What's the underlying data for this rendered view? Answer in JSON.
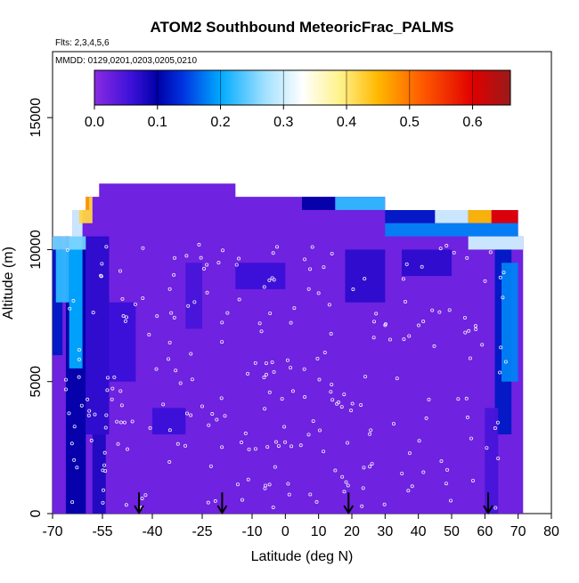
{
  "chart_data": {
    "type": "heatmap",
    "title": "ATOM2 Southbound MeteoricFrac_PALMS",
    "flights_note": "Flts: 2,3,4,5,6",
    "dates_note": "MMDD: 0129,0201,0203,0205,0210",
    "xlabel": "Latitude (deg N)",
    "ylabel": "Altitude (m)",
    "xlim": [
      -70,
      80
    ],
    "ylim": [
      0,
      17500
    ],
    "x_ticks": [
      -70,
      -55,
      -40,
      -25,
      -10,
      0,
      10,
      20,
      30,
      40,
      50,
      60,
      70,
      80
    ],
    "y_ticks": [
      0,
      5000,
      10000,
      15000
    ],
    "colorbar": {
      "ticks": [
        0.0,
        0.1,
        0.2,
        0.3,
        0.4,
        0.5,
        0.6
      ],
      "tick_labels": [
        "0.0",
        "0.1",
        "0.2",
        "0.3",
        "0.4",
        "0.5",
        "0.6"
      ],
      "range": [
        0.0,
        0.66
      ],
      "stops": [
        {
          "value": 0.0,
          "color": "#8a2be2"
        },
        {
          "value": 0.06,
          "color": "#3a10d8"
        },
        {
          "value": 0.1,
          "color": "#0000a8"
        },
        {
          "value": 0.14,
          "color": "#0033e0"
        },
        {
          "value": 0.2,
          "color": "#00aaff"
        },
        {
          "value": 0.27,
          "color": "#a0e0ff"
        },
        {
          "value": 0.33,
          "color": "#ffffff"
        },
        {
          "value": 0.39,
          "color": "#fff28a"
        },
        {
          "value": 0.45,
          "color": "#ffb800"
        },
        {
          "value": 0.52,
          "color": "#ff5a00"
        },
        {
          "value": 0.6,
          "color": "#e00000"
        },
        {
          "value": 0.66,
          "color": "#9a1a1a"
        }
      ]
    },
    "arrows_latitude": [
      -44,
      -19,
      19,
      61
    ],
    "data_extent": {
      "lat_min": -70,
      "lat_max": 71.5
    },
    "top_altitude_by_lat": [
      {
        "lat": -70,
        "top": 10500
      },
      {
        "lat": -64,
        "top": 10500
      },
      {
        "lat": -64,
        "top": 11500
      },
      {
        "lat": -60,
        "top": 11500
      },
      {
        "lat": -60,
        "top": 12000
      },
      {
        "lat": -56,
        "top": 12000
      },
      {
        "lat": -56,
        "top": 12500
      },
      {
        "lat": -15,
        "top": 12500
      },
      {
        "lat": -15,
        "top": 12000
      },
      {
        "lat": 30,
        "top": 12000
      },
      {
        "lat": 30,
        "top": 11500
      },
      {
        "lat": 70,
        "top": 11500
      },
      {
        "lat": 70,
        "top": 10500
      },
      {
        "lat": 71.5,
        "top": 10500
      }
    ],
    "background_value": 0.02,
    "regions": [
      {
        "lat": [
          -66,
          -60
        ],
        "alt": [
          0,
          10500
        ],
        "value": 0.1
      },
      {
        "lat": [
          -65,
          -61
        ],
        "alt": [
          5500,
          10000
        ],
        "value": 0.2
      },
      {
        "lat": [
          -70,
          -67
        ],
        "alt": [
          6000,
          10500
        ],
        "value": 0.12
      },
      {
        "lat": [
          -69,
          -65
        ],
        "alt": [
          8000,
          10000
        ],
        "value": 0.22
      },
      {
        "lat": [
          -60,
          -53
        ],
        "alt": [
          3000,
          10500
        ],
        "value": 0.07
      },
      {
        "lat": [
          -53,
          -45
        ],
        "alt": [
          5000,
          8000
        ],
        "value": 0.06
      },
      {
        "lat": [
          -65,
          -61
        ],
        "alt": [
          10000,
          11500
        ],
        "value": 0.3
      },
      {
        "lat": [
          -62,
          -58
        ],
        "alt": [
          11000,
          12000
        ],
        "value": 0.42
      },
      {
        "lat": [
          -61,
          -59
        ],
        "alt": [
          11500,
          12000
        ],
        "value": 0.48
      },
      {
        "lat": [
          -70,
          -60
        ],
        "alt": [
          10000,
          10500
        ],
        "value": 0.25
      },
      {
        "lat": [
          -40,
          -30
        ],
        "alt": [
          3000,
          4000
        ],
        "value": 0.06
      },
      {
        "lat": [
          -30,
          -25
        ],
        "alt": [
          7000,
          9500
        ],
        "value": 0.05
      },
      {
        "lat": [
          -15,
          0
        ],
        "alt": [
          8500,
          9500
        ],
        "value": 0.06
      },
      {
        "lat": [
          5,
          15
        ],
        "alt": [
          11500,
          12000
        ],
        "value": 0.1
      },
      {
        "lat": [
          15,
          30
        ],
        "alt": [
          11500,
          12000
        ],
        "value": 0.22
      },
      {
        "lat": [
          30,
          45
        ],
        "alt": [
          11000,
          11500
        ],
        "value": 0.12
      },
      {
        "lat": [
          45,
          55
        ],
        "alt": [
          11000,
          11500
        ],
        "value": 0.3
      },
      {
        "lat": [
          55,
          62
        ],
        "alt": [
          11000,
          11500
        ],
        "value": 0.45
      },
      {
        "lat": [
          62,
          70
        ],
        "alt": [
          11000,
          11500
        ],
        "value": 0.6
      },
      {
        "lat": [
          30,
          70
        ],
        "alt": [
          10500,
          11000
        ],
        "value": 0.18
      },
      {
        "lat": [
          55,
          71.5
        ],
        "alt": [
          10000,
          10500
        ],
        "value": 0.3
      },
      {
        "lat": [
          18,
          30
        ],
        "alt": [
          8000,
          10000
        ],
        "value": 0.07
      },
      {
        "lat": [
          35,
          50
        ],
        "alt": [
          9000,
          10000
        ],
        "value": 0.07
      },
      {
        "lat": [
          63,
          68
        ],
        "alt": [
          3000,
          10000
        ],
        "value": 0.12
      },
      {
        "lat": [
          65,
          70
        ],
        "alt": [
          5000,
          9500
        ],
        "value": 0.18
      },
      {
        "lat": [
          60,
          64
        ],
        "alt": [
          0,
          4000
        ],
        "value": 0.05
      },
      {
        "lat": [
          -58,
          -54
        ],
        "alt": [
          0,
          3000
        ],
        "value": 0.08
      }
    ]
  }
}
